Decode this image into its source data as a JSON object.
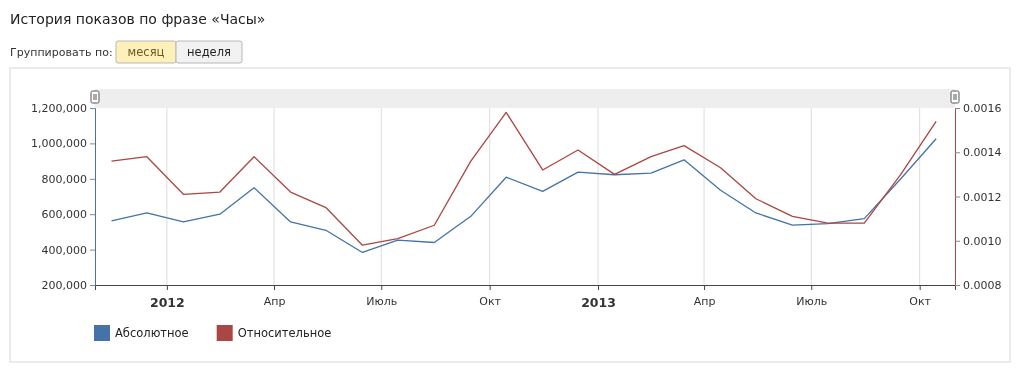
{
  "chart_data": {
    "type": "line",
    "title": "История показов по фразе «Часы»",
    "annotations": [
      "Группировать по:",
      "месяц",
      "неделя"
    ],
    "x": [
      "2011-11-15",
      "2011-12-15",
      "2012-01-15",
      "2012-02-15",
      "2012-03-15",
      "2012-04-15",
      "2012-05-15",
      "2012-06-15",
      "2012-07-15",
      "2012-08-15",
      "2012-09-15",
      "2012-10-15",
      "2012-11-15",
      "2012-12-15",
      "2013-01-15",
      "2013-02-15",
      "2013-03-15",
      "2013-04-15",
      "2013-05-15",
      "2013-06-15",
      "2013-07-15",
      "2013-08-15",
      "2013-09-15",
      "2013-10-15"
    ],
    "series": [
      {
        "name": "Абсолютное",
        "color": "#4572a7",
        "values": [
          562000,
          607000,
          556000,
          600000,
          750000,
          556000,
          509000,
          384000,
          453000,
          440000,
          588000,
          809000,
          729000,
          838000,
          823000,
          832000,
          907000,
          735000,
          607000,
          538000,
          547000,
          575000,
          800000,
          1026000
        ]
      },
      {
        "name": "Относительное",
        "color": "#aa4643",
        "axis": "y2",
        "values": [
          0.00136,
          0.00138,
          0.00121,
          0.00122,
          0.00138,
          0.00122,
          0.00115,
          0.00098,
          0.00101,
          0.00107,
          0.00136,
          0.00158,
          0.00132,
          0.00141,
          0.0013,
          0.00138,
          0.00143,
          0.00133,
          0.00119,
          0.00111,
          0.00108,
          0.00108,
          0.0013,
          0.00154
        ]
      }
    ],
    "xlim": [
      "2011-11-01",
      "2013-10-31"
    ],
    "xticks": [
      {
        "value": "2012-01-01",
        "label": "2012"
      },
      {
        "value": "2012-04-01",
        "label": "Апр"
      },
      {
        "value": "2012-07-01",
        "label": "Июль"
      },
      {
        "value": "2012-10-01",
        "label": "Окт"
      },
      {
        "value": "2013-01-01",
        "label": "2013"
      },
      {
        "value": "2013-04-01",
        "label": "Апр"
      },
      {
        "value": "2013-07-01",
        "label": "Июль"
      },
      {
        "value": "2013-10-01",
        "label": "Окт"
      }
    ],
    "ylim": [
      200000,
      1200000
    ],
    "yticks": [
      {
        "value": 200000,
        "label": "200,000"
      },
      {
        "value": 400000,
        "label": "400,000"
      },
      {
        "value": 600000,
        "label": "600,000"
      },
      {
        "value": 800000,
        "label": "800,000"
      },
      {
        "value": 1000000,
        "label": "1,000,000"
      },
      {
        "value": 1200000,
        "label": "1,200,000"
      }
    ],
    "y2lim": [
      0.0008,
      0.0016
    ],
    "y2ticks": [
      {
        "value": 0.0008,
        "label": "0.0008"
      },
      {
        "value": 0.001,
        "label": "0.0010"
      },
      {
        "value": 0.0012,
        "label": "0.0012"
      },
      {
        "value": 0.0014,
        "label": "0.0014"
      },
      {
        "value": 0.0016,
        "label": "0.0016"
      }
    ],
    "grid": "x",
    "legend": "bottom left",
    "marker": "none"
  }
}
